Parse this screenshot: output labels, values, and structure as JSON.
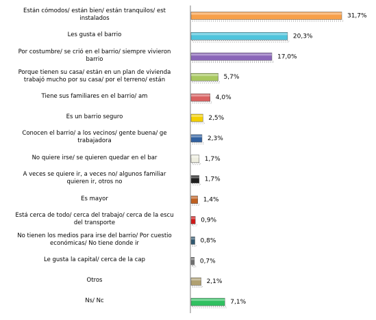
{
  "chart_data": {
    "type": "bar",
    "orientation": "horizontal",
    "categories": [
      "Están cómodos/ están bien/ están tranquilos/ est\ninstalados",
      "Les gusta el barrio",
      "Por costumbre/ se crió en el barrio/ siempre vivieron\nbarrio",
      "Porque tienen su casa/ están en un plan de vivienda\ntrabajó mucho por su casa/ por el terreno/ están",
      "Tiene sus familiares en el barrio/ am",
      "Es un barrio seguro",
      "Conocen el barrio/ a los vecinos/ gente buena/ ge\ntrabajadora",
      "No quiere irse/ se quieren quedar en el bar",
      "A veces se quiere ir, a veces no/ algunos familiar\nquieren ir, otros no",
      "Es mayor",
      "Está cerca de todo/ cerca del trabajo/ cerca de la escu\ndel transporte",
      "No tienen los medios para irse del barrio/ Por cuestio\neconómicas/ No tiene donde ir",
      "Le gusta la capital/ cerca de la cap",
      "Otros",
      "Ns/ Nc"
    ],
    "values": [
      31.7,
      20.3,
      17.0,
      5.7,
      4.0,
      2.5,
      2.3,
      1.7,
      1.7,
      1.4,
      0.9,
      0.8,
      0.7,
      2.1,
      7.1
    ],
    "value_labels": [
      "31,7%",
      "20,3%",
      "17,0%",
      "5,7%",
      "4,0%",
      "2,5%",
      "2,3%",
      "1,7%",
      "1,7%",
      "1,4%",
      "0,9%",
      "0,8%",
      "0,7%",
      "2,1%",
      "7,1%"
    ],
    "colors": [
      "#f7a04a",
      "#4fc4dc",
      "#8a66b8",
      "#a8c860",
      "#d96060",
      "#f4d000",
      "#3060a0",
      "#eeeee0",
      "#202020",
      "#c06020",
      "#d01818",
      "#305870",
      "#707070",
      "#b0a070",
      "#30c060"
    ]
  }
}
